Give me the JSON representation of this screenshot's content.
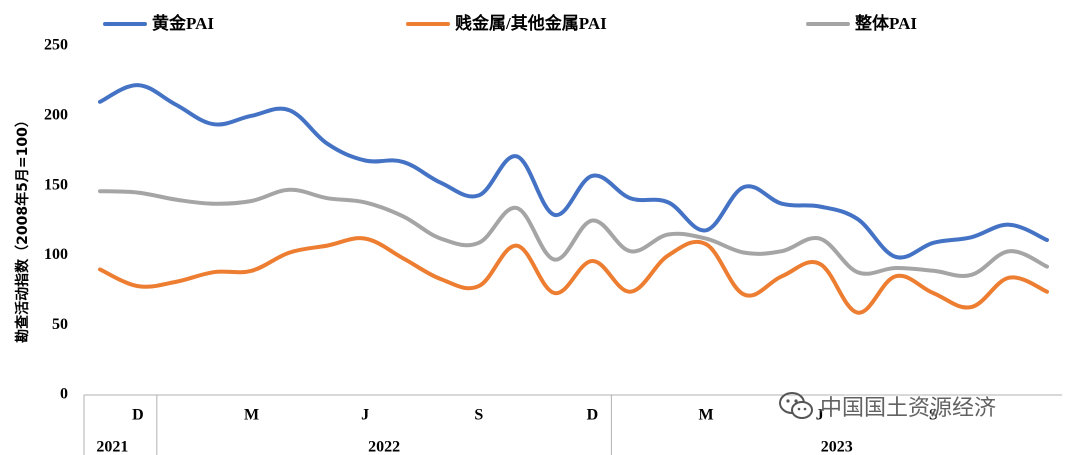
{
  "chart_data": {
    "type": "line",
    "ylabel": "勘查活动指数（2008年5月=100）",
    "ylim": [
      0,
      250
    ],
    "yticks": [
      0,
      50,
      100,
      150,
      200,
      250
    ],
    "x_ticks": [
      {
        "label": "D",
        "index": 1
      },
      {
        "label": "M",
        "index": 4
      },
      {
        "label": "J",
        "index": 7
      },
      {
        "label": "S",
        "index": 10
      },
      {
        "label": "D",
        "index": 13
      },
      {
        "label": "M",
        "index": 16
      },
      {
        "label": "J",
        "index": 19
      },
      {
        "label": "S",
        "index": 22
      }
    ],
    "year_groups": [
      {
        "label": "2021",
        "start": 0,
        "end": 2
      },
      {
        "label": "2022",
        "start": 2,
        "end": 14
      },
      {
        "label": "2023",
        "start": 14,
        "end": 24
      }
    ],
    "legend_position": "top",
    "series": [
      {
        "name": "黄金PAI",
        "color": "#4472C4",
        "values": [
          210,
          222,
          208,
          194,
          200,
          204,
          180,
          168,
          167,
          152,
          143,
          171,
          129,
          157,
          141,
          138,
          118,
          149,
          137,
          135,
          126,
          99,
          109,
          113,
          122,
          111
        ]
      },
      {
        "name": "贱金属/其他金属PAI",
        "color": "#ED7D31",
        "values": [
          90,
          78,
          81,
          88,
          89,
          102,
          107,
          112,
          98,
          83,
          78,
          107,
          73,
          96,
          74,
          100,
          108,
          72,
          85,
          94,
          59,
          85,
          73,
          63,
          84,
          74
        ]
      },
      {
        "name": "整体PAI",
        "color": "#A5A5A5",
        "values": [
          146,
          145,
          140,
          137,
          139,
          147,
          141,
          138,
          128,
          112,
          109,
          134,
          97,
          125,
          103,
          115,
          112,
          102,
          103,
          112,
          88,
          91,
          89,
          86,
          103,
          92
        ]
      }
    ]
  },
  "watermark": {
    "text": "中国国土资源经济",
    "icon": "wechat-icon"
  }
}
